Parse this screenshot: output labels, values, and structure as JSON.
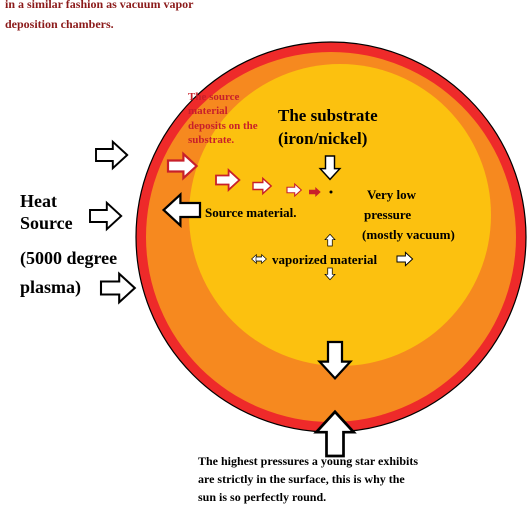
{
  "header": {
    "lines": [
      "in a similar fashion as vacuum vapor",
      "deposition chambers."
    ]
  },
  "labels": {
    "deposit_note": [
      "The source",
      "material",
      "deposits on the",
      "substrate."
    ],
    "substrate": [
      "The substrate",
      "(iron/nickel)"
    ],
    "pressure": [
      "Very low",
      "pressure",
      "(mostly vacuum)"
    ],
    "source_material": "Source material.",
    "vaporized": "vaporized material",
    "heat_source": [
      "Heat",
      "Source",
      "(5000 degree",
      "plasma)"
    ]
  },
  "footer": {
    "lines": [
      "The highest pressures a young star exhibits",
      "are strictly in the surface, this is why the",
      "sun is so perfectly round."
    ]
  }
}
